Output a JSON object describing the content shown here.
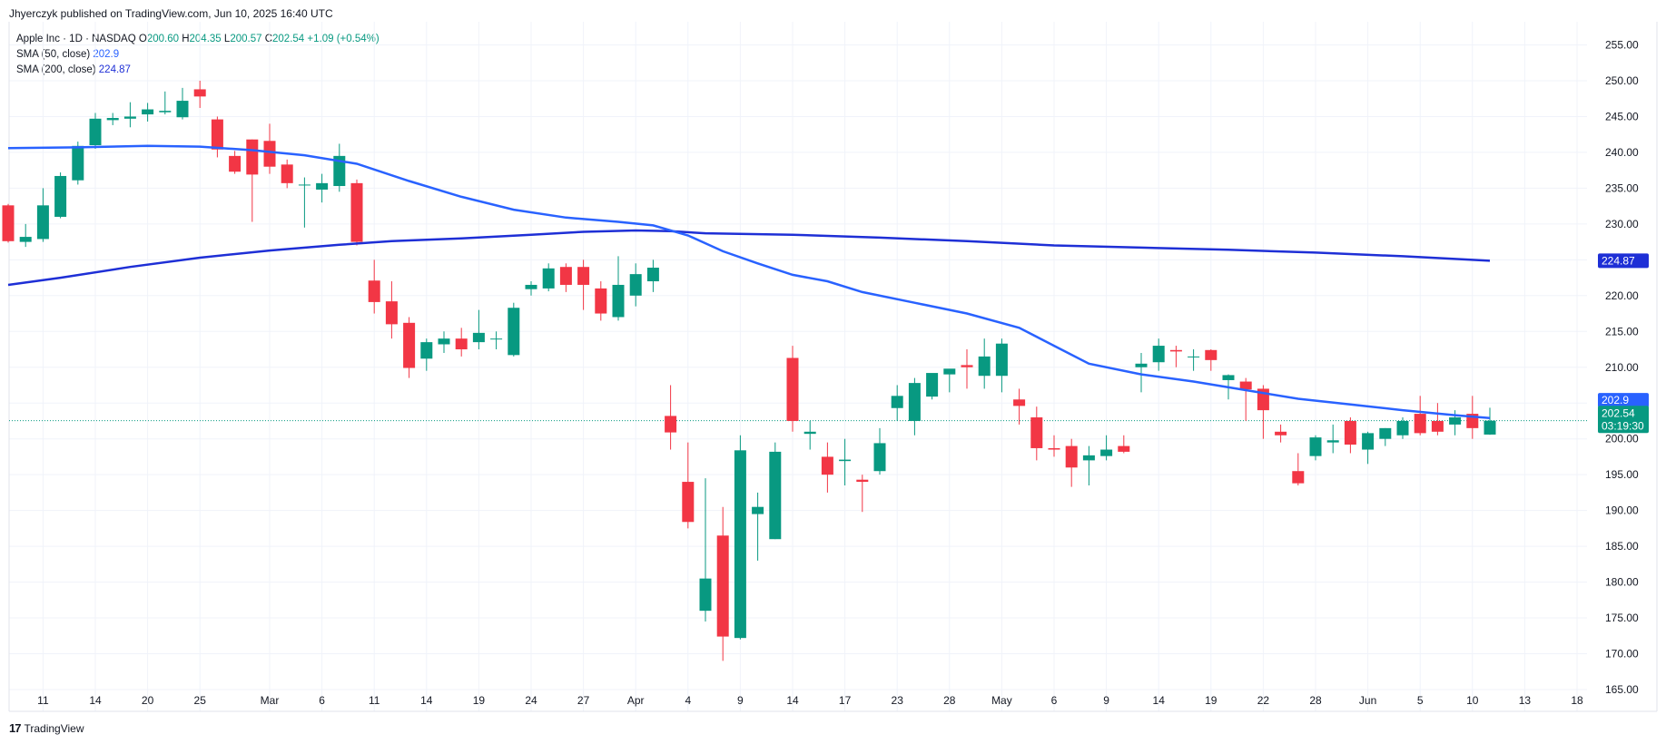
{
  "header": {
    "publisher_line": "Jhyerczyk published on TradingView.com, Jun 10, 2025 16:40 UTC"
  },
  "legend": {
    "symbol_line": "Apple Inc · 1D · NASDAQ",
    "open_label": "O",
    "open": "200.60",
    "high_label": "H",
    "high": "204.35",
    "low_label": "L",
    "low": "200.57",
    "close_label": "C",
    "close": "202.54",
    "change": "+1.09 (+0.54%)",
    "sma50_label": "SMA (50, close)",
    "sma50_value": "202.9",
    "sma200_label": "SMA (200, close)",
    "sma200_value": "224.87"
  },
  "price_badges": {
    "sma50": "202.9",
    "sma200": "224.87",
    "last": "202.54",
    "countdown": "03:19:30"
  },
  "footer": {
    "brand": "TradingView",
    "logo_text": "17"
  },
  "colors": {
    "up": "#089981",
    "down": "#f23645",
    "sma50": "#2962ff",
    "sma200": "#1e2fd6",
    "grid": "#f0f3fa"
  },
  "chart_data": {
    "type": "candlestick",
    "symbol": "Apple Inc",
    "interval": "1D",
    "exchange": "NASDAQ",
    "y_ticks": [
      165,
      170,
      175,
      180,
      185,
      190,
      195,
      200,
      205,
      210,
      215,
      220,
      225,
      230,
      235,
      240,
      245,
      250,
      255
    ],
    "ylim": [
      162,
      258
    ],
    "x_ticks": [
      {
        "i": 2,
        "label": "11"
      },
      {
        "i": 5,
        "label": "14"
      },
      {
        "i": 8,
        "label": "20"
      },
      {
        "i": 11,
        "label": "25"
      },
      {
        "i": 15,
        "label": "Mar"
      },
      {
        "i": 18,
        "label": "6"
      },
      {
        "i": 21,
        "label": "11"
      },
      {
        "i": 24,
        "label": "14"
      },
      {
        "i": 27,
        "label": "19"
      },
      {
        "i": 30,
        "label": "24"
      },
      {
        "i": 33,
        "label": "27"
      },
      {
        "i": 36,
        "label": "Apr"
      },
      {
        "i": 39,
        "label": "4"
      },
      {
        "i": 42,
        "label": "9"
      },
      {
        "i": 45,
        "label": "14"
      },
      {
        "i": 48,
        "label": "17"
      },
      {
        "i": 51,
        "label": "23"
      },
      {
        "i": 54,
        "label": "28"
      },
      {
        "i": 57,
        "label": "May"
      },
      {
        "i": 60,
        "label": "6"
      },
      {
        "i": 63,
        "label": "9"
      },
      {
        "i": 66,
        "label": "14"
      },
      {
        "i": 69,
        "label": "19"
      },
      {
        "i": 72,
        "label": "22"
      },
      {
        "i": 75,
        "label": "28"
      },
      {
        "i": 78,
        "label": "Jun"
      },
      {
        "i": 81,
        "label": "5"
      },
      {
        "i": 84,
        "label": "10"
      },
      {
        "i": 87,
        "label": "13"
      },
      {
        "i": 90,
        "label": "18"
      }
    ],
    "candles": [
      [
        232.6,
        232.8,
        227.4,
        227.6
      ],
      [
        227.5,
        230.0,
        226.8,
        228.2
      ],
      [
        227.9,
        235.0,
        227.5,
        232.6
      ],
      [
        231.0,
        237.2,
        230.8,
        236.7
      ],
      [
        236.1,
        241.5,
        235.5,
        240.9
      ],
      [
        241.0,
        245.5,
        240.5,
        244.7
      ],
      [
        244.5,
        245.5,
        243.8,
        244.8
      ],
      [
        244.7,
        247.0,
        243.5,
        245.0
      ],
      [
        245.3,
        246.9,
        244.3,
        246.0
      ],
      [
        245.6,
        248.5,
        245.3,
        245.8
      ],
      [
        244.9,
        249.0,
        244.6,
        247.2
      ],
      [
        248.8,
        250.0,
        246.2,
        247.8
      ],
      [
        244.6,
        245.0,
        239.3,
        240.4
      ],
      [
        239.5,
        240.2,
        237.0,
        237.3
      ],
      [
        241.8,
        241.8,
        230.3,
        236.9
      ],
      [
        241.6,
        244.0,
        237.0,
        238.0
      ],
      [
        238.3,
        239.0,
        235.0,
        235.7
      ],
      [
        235.4,
        236.5,
        229.5,
        235.5
      ],
      [
        234.8,
        237.0,
        233.0,
        235.7
      ],
      [
        235.3,
        241.2,
        234.5,
        239.5
      ],
      [
        235.7,
        236.2,
        227.0,
        227.5
      ],
      [
        222.1,
        225.0,
        217.5,
        219.1
      ],
      [
        219.2,
        222.0,
        214.0,
        216.0
      ],
      [
        216.2,
        217.0,
        208.5,
        209.9
      ],
      [
        211.2,
        214.0,
        209.5,
        213.5
      ],
      [
        213.2,
        215.0,
        212.0,
        214.0
      ],
      [
        214.0,
        215.5,
        211.5,
        212.5
      ],
      [
        213.5,
        218.0,
        212.5,
        214.8
      ],
      [
        214.0,
        215.0,
        212.5,
        214.0
      ],
      [
        211.7,
        219.0,
        211.5,
        218.3
      ],
      [
        220.9,
        222.0,
        220.0,
        221.5
      ],
      [
        221.0,
        224.5,
        220.6,
        223.8
      ],
      [
        224.0,
        224.5,
        220.5,
        221.5
      ],
      [
        224.0,
        225.0,
        218.0,
        221.5
      ],
      [
        221.0,
        222.0,
        216.5,
        217.5
      ],
      [
        217.0,
        225.5,
        216.5,
        221.5
      ],
      [
        220.0,
        224.5,
        218.5,
        223.0
      ],
      [
        222.0,
        225.0,
        220.5,
        223.9
      ],
      [
        203.2,
        207.5,
        198.5,
        200.9
      ],
      [
        194.0,
        199.5,
        187.5,
        188.4
      ],
      [
        176.0,
        194.5,
        174.5,
        180.5
      ],
      [
        186.5,
        190.5,
        169.0,
        172.4
      ],
      [
        172.2,
        200.5,
        172.0,
        198.4
      ],
      [
        189.5,
        192.5,
        183.0,
        190.5
      ],
      [
        186.0,
        199.5,
        186.0,
        198.2
      ],
      [
        211.3,
        213.0,
        201.0,
        202.5
      ],
      [
        200.7,
        202.5,
        198.5,
        201.0
      ],
      [
        197.5,
        199.5,
        192.5,
        195.0
      ],
      [
        196.9,
        200.0,
        193.5,
        197.1
      ],
      [
        194.3,
        195.0,
        189.8,
        194.0
      ],
      [
        195.5,
        201.5,
        195.0,
        199.4
      ],
      [
        204.3,
        207.5,
        202.5,
        206.0
      ],
      [
        202.5,
        208.5,
        200.5,
        207.8
      ],
      [
        205.9,
        209.0,
        205.5,
        209.2
      ],
      [
        209.0,
        209.5,
        206.5,
        209.8
      ],
      [
        210.3,
        212.5,
        207.0,
        210.0
      ],
      [
        208.8,
        214.0,
        207.0,
        211.5
      ],
      [
        208.8,
        214.0,
        206.5,
        213.3
      ],
      [
        205.5,
        207.0,
        202.0,
        204.6
      ],
      [
        203.0,
        204.5,
        197.0,
        198.7
      ],
      [
        198.7,
        200.5,
        197.5,
        198.5
      ],
      [
        199.0,
        200.0,
        193.3,
        196.0
      ],
      [
        197.0,
        199.0,
        193.5,
        197.7
      ],
      [
        197.6,
        200.5,
        197.0,
        198.5
      ],
      [
        199.0,
        200.5,
        198.0,
        198.2
      ],
      [
        210.0,
        212.0,
        206.5,
        210.5
      ],
      [
        210.7,
        214.0,
        209.5,
        213.0
      ],
      [
        212.4,
        213.0,
        210.0,
        212.2
      ],
      [
        211.5,
        212.5,
        209.5,
        211.5
      ],
      [
        212.4,
        212.5,
        209.5,
        211.0
      ],
      [
        208.2,
        209.0,
        205.5,
        208.9
      ],
      [
        208.0,
        208.5,
        202.5,
        206.9
      ],
      [
        207.0,
        207.5,
        200.0,
        204.0
      ],
      [
        201.0,
        202.0,
        199.5,
        200.5
      ],
      [
        195.5,
        198.0,
        193.5,
        193.8
      ],
      [
        197.6,
        200.5,
        197.0,
        200.2
      ],
      [
        199.5,
        202.0,
        198.0,
        199.8
      ],
      [
        202.5,
        203.0,
        198.0,
        199.2
      ],
      [
        198.5,
        201.0,
        196.5,
        200.8
      ],
      [
        200.0,
        201.5,
        199.0,
        201.5
      ],
      [
        200.5,
        203.0,
        200.0,
        202.5
      ],
      [
        203.5,
        206.0,
        200.5,
        200.8
      ],
      [
        202.5,
        205.0,
        200.5,
        201.0
      ],
      [
        202.0,
        204.0,
        200.5,
        203.0
      ],
      [
        203.5,
        206.0,
        200.0,
        201.5
      ],
      [
        200.6,
        204.35,
        200.57,
        202.54
      ]
    ],
    "sma50": [
      [
        0,
        240.6
      ],
      [
        4,
        240.7
      ],
      [
        8,
        240.9
      ],
      [
        11,
        240.8
      ],
      [
        14,
        240.3
      ],
      [
        17,
        239.6
      ],
      [
        20,
        238.4
      ],
      [
        23,
        236.0
      ],
      [
        26,
        233.8
      ],
      [
        29,
        232.0
      ],
      [
        32,
        230.9
      ],
      [
        35,
        230.3
      ],
      [
        37,
        229.8
      ],
      [
        39,
        228.4
      ],
      [
        41,
        226.2
      ],
      [
        43,
        224.5
      ],
      [
        45,
        222.9
      ],
      [
        47,
        222.0
      ],
      [
        49,
        220.5
      ],
      [
        52,
        219.0
      ],
      [
        55,
        217.5
      ],
      [
        58,
        215.5
      ],
      [
        60,
        213.0
      ],
      [
        62,
        210.5
      ],
      [
        65,
        209.0
      ],
      [
        68,
        208.0
      ],
      [
        71,
        206.8
      ],
      [
        74,
        205.6
      ],
      [
        77,
        204.8
      ],
      [
        80,
        204.0
      ],
      [
        83,
        203.3
      ],
      [
        85,
        202.9
      ]
    ],
    "sma200": [
      [
        0,
        221.5
      ],
      [
        3,
        222.5
      ],
      [
        7,
        224.0
      ],
      [
        11,
        225.3
      ],
      [
        15,
        226.3
      ],
      [
        19,
        227.1
      ],
      [
        22,
        227.6
      ],
      [
        26,
        228.0
      ],
      [
        30,
        228.5
      ],
      [
        33,
        228.9
      ],
      [
        36,
        229.1
      ],
      [
        38,
        229.0
      ],
      [
        40,
        228.7
      ],
      [
        45,
        228.5
      ],
      [
        50,
        228.1
      ],
      [
        55,
        227.6
      ],
      [
        60,
        227.0
      ],
      [
        65,
        226.7
      ],
      [
        70,
        226.4
      ],
      [
        75,
        226.0
      ],
      [
        80,
        225.5
      ],
      [
        85,
        224.87
      ]
    ]
  }
}
